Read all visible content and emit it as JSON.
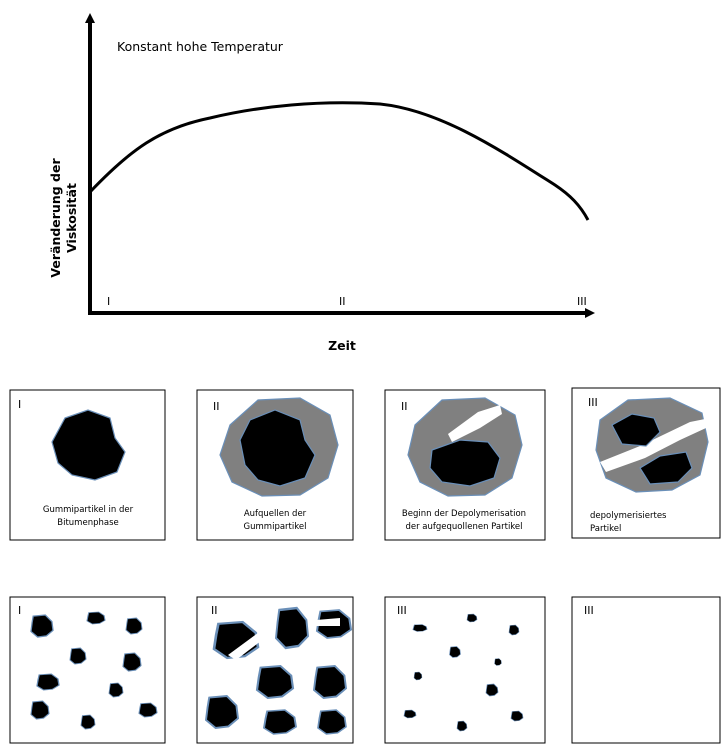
{
  "graph": {
    "annotation": "Konstant hohe Temperatur",
    "y_label": [
      "Veränderung der",
      "Viskosität"
    ],
    "x_label": "Zeit",
    "phases": [
      "I",
      "II",
      "III"
    ]
  },
  "panels_top": [
    {
      "label": "I",
      "caption": [
        "Gummipartikel in der",
        "Bitumenphase"
      ]
    },
    {
      "label": "II",
      "caption": [
        "Aufquellen der",
        "Gummipartikel"
      ]
    },
    {
      "label": "II",
      "caption": [
        "Beginn der Depolymerisation",
        "der aufgequollenen Partikel"
      ]
    },
    {
      "label": "III",
      "caption": [
        "depolymerisiertes",
        "Partikel"
      ]
    }
  ],
  "panels_bottom": [
    {
      "label": "I"
    },
    {
      "label": "II"
    },
    {
      "label": "III"
    },
    {
      "label": "III"
    }
  ]
}
